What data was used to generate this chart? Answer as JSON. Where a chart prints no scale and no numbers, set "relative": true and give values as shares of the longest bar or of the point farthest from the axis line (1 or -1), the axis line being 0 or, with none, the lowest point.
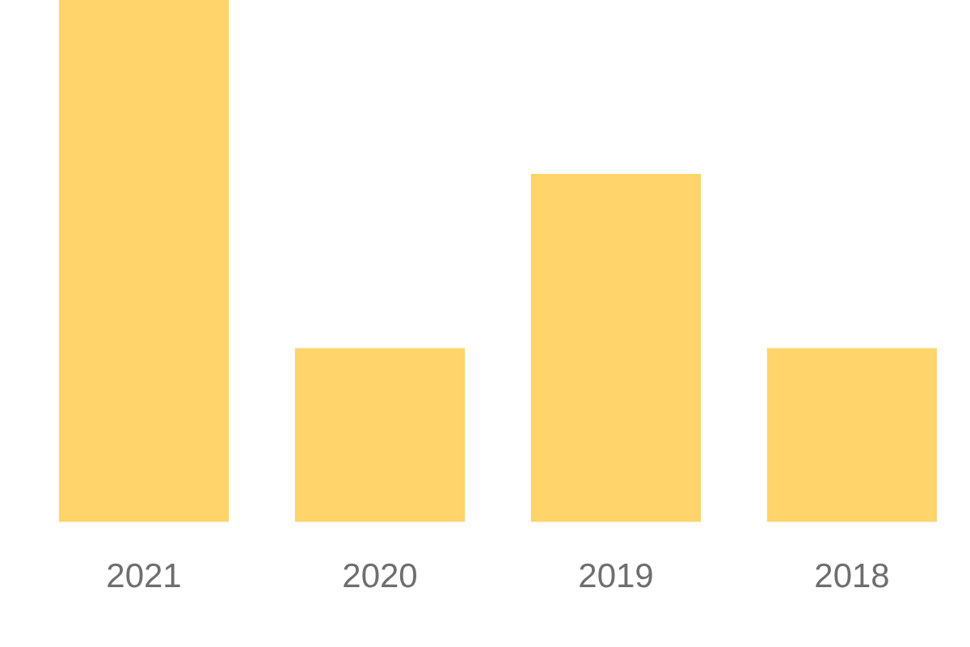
{
  "chart_data": {
    "type": "bar",
    "relative": true,
    "categories": [
      "2021",
      "2020",
      "2019",
      "2018"
    ],
    "values": [
      1,
      0.333,
      0.667,
      0.333
    ],
    "color": "#fed46b",
    "grid": false,
    "legend": false
  }
}
